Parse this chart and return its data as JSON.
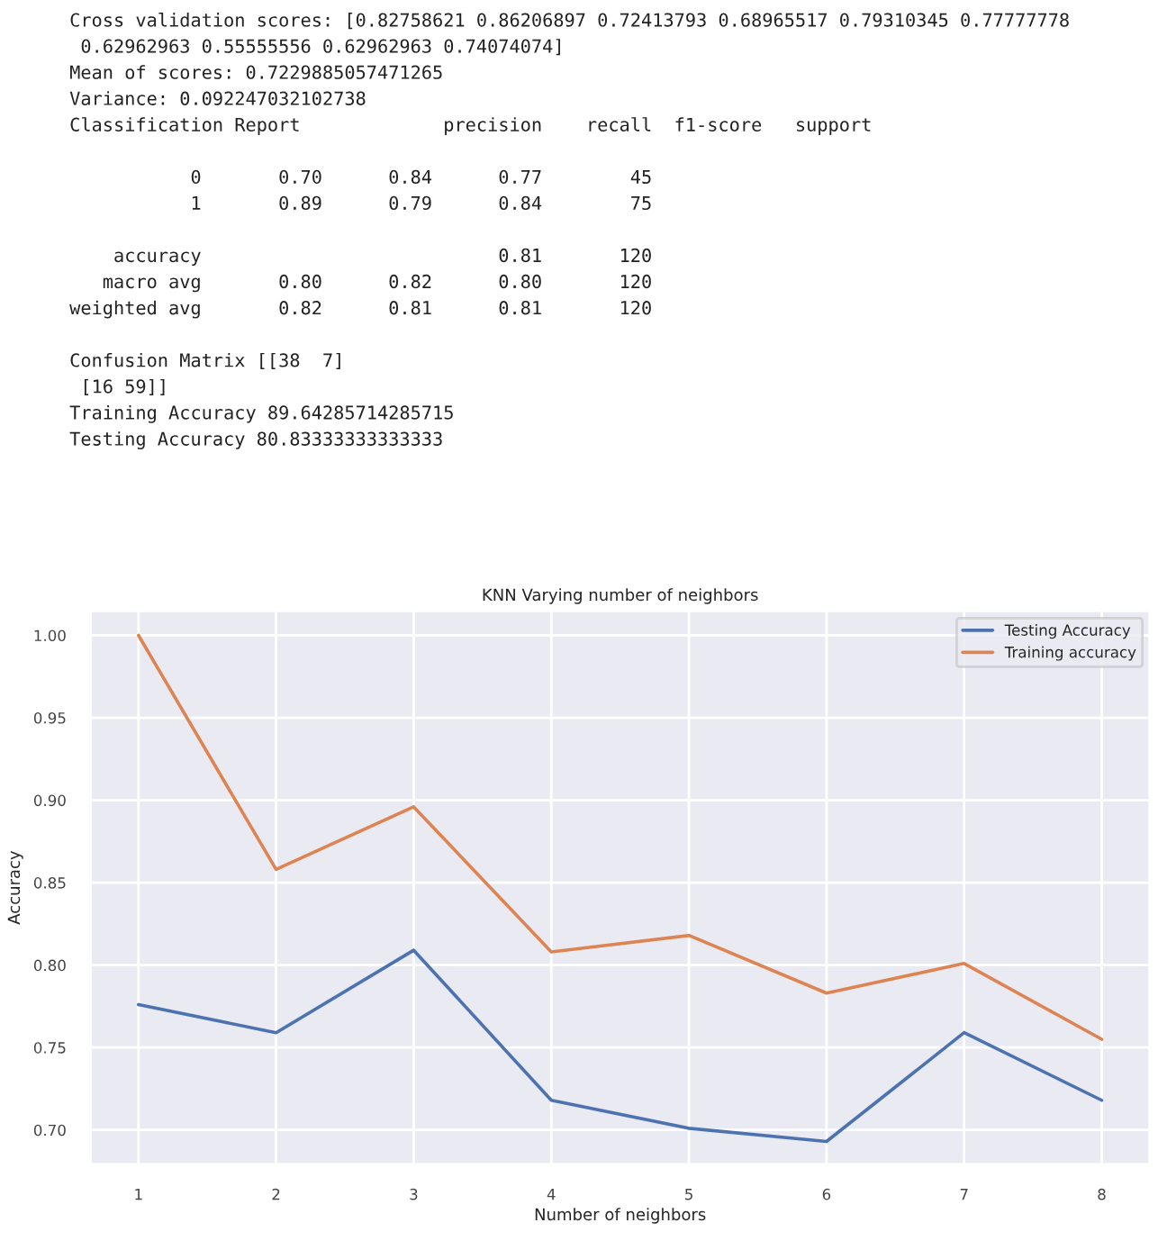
{
  "chart_data": {
    "type": "line",
    "title": "KNN Varying number of neighbors",
    "xlabel": "Number of neighbors",
    "ylabel": "Accuracy",
    "x": [
      1,
      2,
      3,
      4,
      5,
      6,
      7,
      8
    ],
    "series": [
      {
        "name": "Testing Accuracy",
        "color": "#4c72b0",
        "values": [
          0.776,
          0.759,
          0.809,
          0.718,
          0.701,
          0.693,
          0.759,
          0.718
        ]
      },
      {
        "name": "Training accuracy",
        "color": "#dd8452",
        "values": [
          1.0,
          0.858,
          0.896,
          0.808,
          0.818,
          0.783,
          0.801,
          0.755
        ]
      }
    ],
    "xlim": [
      0.65,
      8.35
    ],
    "ylim": [
      0.679,
      1.015
    ],
    "xticks": [
      1,
      2,
      3,
      4,
      5,
      6,
      7,
      8
    ],
    "yticks": [
      {
        "value": 0.7,
        "label": "0.70"
      },
      {
        "value": 0.75,
        "label": "0.75"
      },
      {
        "value": 0.8,
        "label": "0.80"
      },
      {
        "value": 0.85,
        "label": "0.85"
      },
      {
        "value": 0.9,
        "label": "0.90"
      },
      {
        "value": 0.95,
        "label": "0.95"
      },
      {
        "value": 1.0,
        "label": "1.00"
      }
    ],
    "grid": true,
    "legend": "top right",
    "marker": "none",
    "line_style": "solid",
    "annotations": [
      "Cross validation scores: [0.82758621 0.86206897 0.72413793 0.68965517 0.79310345 0.77777778\n 0.62962963 0.55555556 0.62962963 0.74074074]\nMean of scores: 0.7229885057471265\nVariance: 0.092247032102738\nClassification Report             precision    recall  f1-score   support\n\n           0       0.70      0.84      0.77        45\n           1       0.89      0.79      0.84        75\n\n    accuracy                           0.81       120\n   macro avg       0.80      0.82      0.80       120\nweighted avg       0.82      0.81      0.81       120\n\nConfusion Matrix [[38  7]\n [16 59]]\nTraining Accuracy 89.64285714285715\nTesting Accuracy 80.83333333333333"
    ]
  }
}
